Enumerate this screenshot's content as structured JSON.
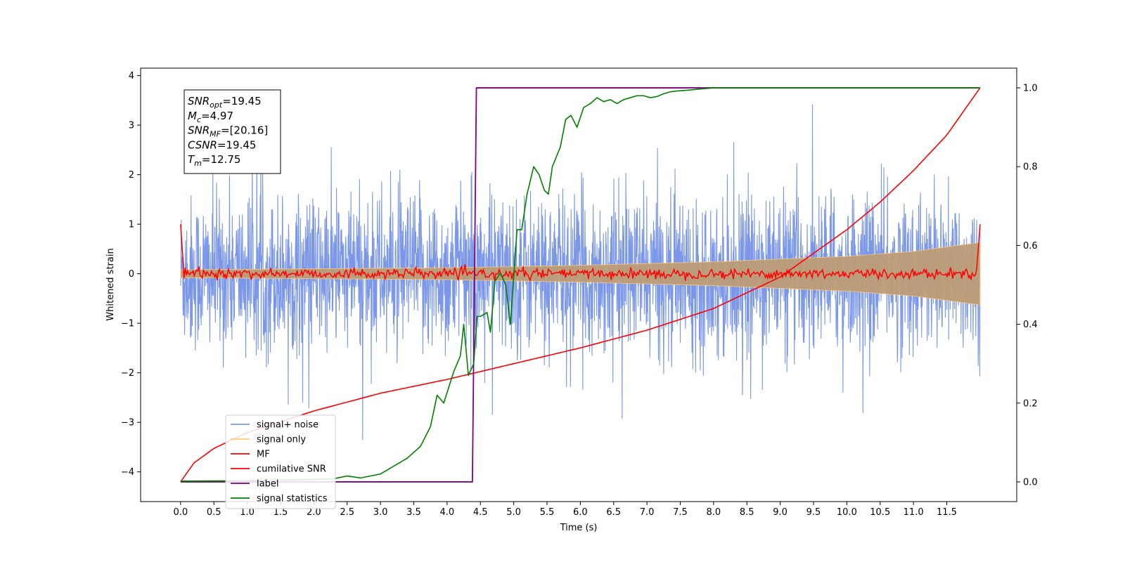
{
  "chart_data": {
    "type": "line",
    "xlabel": "Time (s)",
    "ylabel_left": "Whitened strain",
    "xlim": [
      -0.6,
      12.55
    ],
    "ylim_left": [
      -4.6,
      4.15
    ],
    "ylim_right": [
      -0.05,
      1.05
    ],
    "x_ticks": [
      "0.0",
      "0.5",
      "1.0",
      "1.5",
      "2.0",
      "2.5",
      "3.0",
      "3.5",
      "4.0",
      "4.5",
      "5.0",
      "5.5",
      "6.0",
      "6.5",
      "7.0",
      "7.5",
      "8.0",
      "8.5",
      "9.0",
      "9.5",
      "10.0",
      "10.5",
      "11.0",
      "11.5"
    ],
    "y_ticks_left": [
      "4",
      "3",
      "2",
      "1",
      "0",
      "−1",
      "−2",
      "−3",
      "−4"
    ],
    "y_ticks_right": [
      "1.0",
      "0.8",
      "0.6",
      "0.4",
      "0.2",
      "0.0"
    ],
    "grid": false,
    "legend_position": "lower-left",
    "info_box": {
      "lines": [
        {
          "sym": "SNR",
          "sub": "opt",
          "val": "=19.45"
        },
        {
          "sym": "M",
          "sub": "c",
          "val": "=4.97"
        },
        {
          "sym": "SNR",
          "sub": "MF",
          "val": "=[20.16]"
        },
        {
          "sym": "CSNR",
          "sub": "",
          "val": "=19.45"
        },
        {
          "sym": "T",
          "sub": "m",
          "val": "=12.75"
        }
      ]
    },
    "colors": {
      "signal_noise": "#7b97e9",
      "signal_only": "#ffc978",
      "overlap": "#bd9d77",
      "mf": "#ff0000",
      "csnr": "#ff0000",
      "label": "#800080",
      "stats": "#008000"
    },
    "series": [
      {
        "name": "signal+ noise",
        "key": "signal_noise",
        "axis": "left",
        "x_range": [
          0.0,
          12.0
        ],
        "amplitude_range": [
          -4.15,
          3.7
        ]
      },
      {
        "name": "signal only",
        "key": "signal_only",
        "axis": "left",
        "x": [
          0.0,
          2.0,
          4.0,
          6.0,
          8.0,
          10.0,
          11.0,
          12.0
        ],
        "envelope": [
          0.08,
          0.1,
          0.12,
          0.17,
          0.24,
          0.35,
          0.45,
          0.63
        ]
      },
      {
        "name": "MF",
        "key": "mf",
        "axis": "left",
        "x": [
          0.0,
          0.05,
          11.95,
          12.0
        ],
        "y": [
          1.0,
          0.0,
          0.1,
          1.0
        ],
        "noise_amplitude": 0.05
      },
      {
        "name": "cumilative SNR",
        "key": "csnr",
        "axis": "right",
        "x": [
          0.0,
          0.2,
          0.5,
          1.0,
          2.0,
          3.0,
          4.0,
          5.0,
          6.0,
          7.0,
          8.0,
          9.0,
          10.0,
          10.5,
          11.0,
          11.5,
          12.0
        ],
        "y": [
          0.0,
          0.048,
          0.085,
          0.125,
          0.18,
          0.225,
          0.26,
          0.3,
          0.34,
          0.385,
          0.44,
          0.52,
          0.64,
          0.71,
          0.79,
          0.88,
          1.0
        ]
      },
      {
        "name": "label",
        "key": "label",
        "axis": "right",
        "x": [
          0.0,
          4.38,
          4.44,
          12.0
        ],
        "y": [
          0.0,
          0.0,
          1.0,
          1.0
        ]
      },
      {
        "name": "signal statistics",
        "key": "stats",
        "axis": "right",
        "x": [
          0.0,
          1.0,
          2.0,
          2.3,
          2.5,
          2.7,
          3.0,
          3.2,
          3.4,
          3.6,
          3.75,
          3.85,
          3.95,
          4.1,
          4.2,
          4.25,
          4.32,
          4.4,
          4.45,
          4.5,
          4.6,
          4.65,
          4.72,
          4.8,
          4.88,
          4.95,
          5.05,
          5.12,
          5.2,
          5.3,
          5.38,
          5.46,
          5.52,
          5.58,
          5.7,
          5.78,
          5.86,
          5.95,
          6.05,
          6.15,
          6.25,
          6.35,
          6.45,
          6.55,
          6.65,
          6.75,
          6.85,
          6.95,
          7.05,
          7.15,
          7.25,
          7.35,
          7.45,
          7.6,
          7.8,
          8.0,
          8.5,
          9.0,
          10.0,
          11.0,
          12.0
        ],
        "y": [
          0.002,
          0.003,
          0.006,
          0.008,
          0.015,
          0.01,
          0.02,
          0.04,
          0.06,
          0.09,
          0.14,
          0.22,
          0.2,
          0.28,
          0.32,
          0.4,
          0.27,
          0.3,
          0.42,
          0.42,
          0.43,
          0.38,
          0.51,
          0.53,
          0.5,
          0.4,
          0.64,
          0.64,
          0.73,
          0.8,
          0.78,
          0.74,
          0.73,
          0.8,
          0.85,
          0.92,
          0.93,
          0.9,
          0.95,
          0.96,
          0.975,
          0.965,
          0.97,
          0.96,
          0.97,
          0.975,
          0.98,
          0.98,
          0.975,
          0.978,
          0.985,
          0.99,
          0.992,
          0.994,
          0.997,
          1.0,
          1.0,
          1.0,
          1.0,
          1.0,
          1.0
        ]
      }
    ],
    "legend": [
      {
        "label": "signal+ noise",
        "key": "signal_noise"
      },
      {
        "label": "signal only",
        "key": "signal_only"
      },
      {
        "label": "MF",
        "key": "mf"
      },
      {
        "label": "cumilative SNR",
        "key": "csnr"
      },
      {
        "label": "label",
        "key": "label"
      },
      {
        "label": "signal statistics",
        "key": "stats"
      }
    ]
  }
}
